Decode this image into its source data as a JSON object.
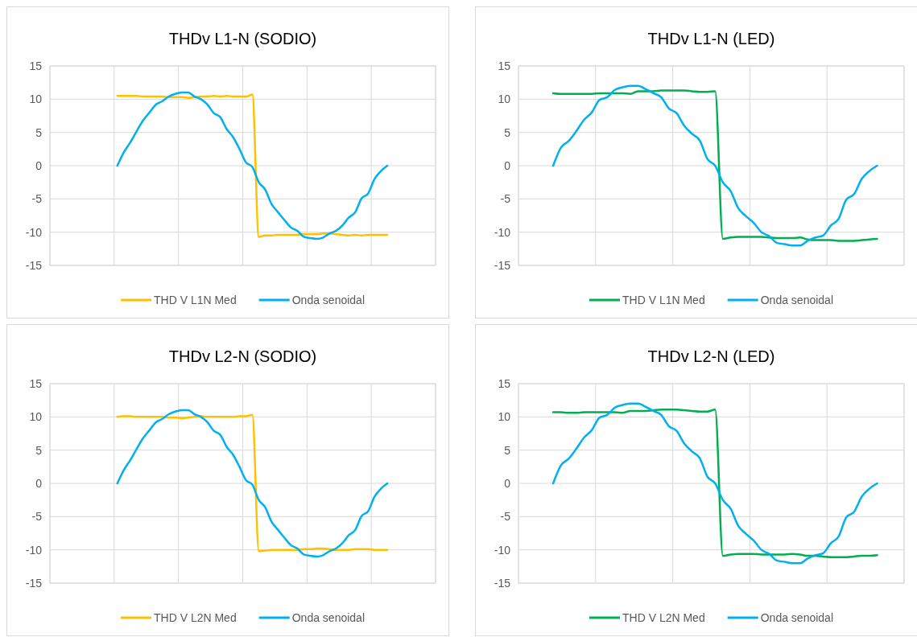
{
  "chart_data": [
    {
      "type": "line",
      "title": "THDv L1-N (SODIO)",
      "categories": [
        null,
        null,
        null,
        null,
        null,
        null,
        null,
        null,
        null,
        null,
        null,
        null,
        null,
        null,
        null,
        null,
        null,
        null,
        null,
        null,
        null,
        null,
        null,
        null,
        null,
        null,
        null,
        null,
        null,
        null,
        null,
        null,
        null,
        null,
        null,
        null,
        null,
        null,
        null,
        null,
        null,
        null,
        null,
        null,
        null,
        null,
        null,
        null,
        null,
        null,
        null,
        null,
        null,
        null,
        null,
        null,
        null,
        null,
        null,
        null
      ],
      "ylim": [
        -15,
        15
      ],
      "yticks": [
        -15,
        -10,
        -5,
        0,
        5,
        10,
        15
      ],
      "grid": true,
      "legend": "bottom",
      "tick_labels": "y",
      "marker": "none",
      "line_style": "solid",
      "series": [
        {
          "name": "THD V L1N Med",
          "color": "#ffc000",
          "values": [
            null,
            null,
            null,
            null,
            null,
            null,
            null,
            null,
            null,
            null,
            10.5,
            10.5,
            10.5,
            10.5,
            10.4,
            10.4,
            10.4,
            10.4,
            10.3,
            10.3,
            10.3,
            10.2,
            10.3,
            10.4,
            10.4,
            10.5,
            10.4,
            10.5,
            10.4,
            10.4,
            10.4,
            10.7,
            -10.7,
            -10.5,
            -10.5,
            -10.4,
            -10.4,
            -10.4,
            -10.4,
            -10.3,
            -10.3,
            -10.3,
            -10.2,
            -10.2,
            -10.3,
            -10.4,
            -10.5,
            -10.4,
            -10.5,
            -10.4,
            -10.4,
            -10.4,
            -10.4,
            null,
            null,
            null,
            null,
            null,
            null,
            null
          ]
        },
        {
          "name": "Onda senoidal",
          "color": "#00b0f0",
          "values": [
            null,
            null,
            null,
            null,
            null,
            null,
            null,
            null,
            null,
            null,
            0,
            2.0,
            3.5,
            5.2,
            6.8,
            8.0,
            9.2,
            9.7,
            10.4,
            10.8,
            11.0,
            11.0,
            10.4,
            10.0,
            9.2,
            7.9,
            7.3,
            5.5,
            4.3,
            2.5,
            0.5,
            -0.2,
            -2.5,
            -3.6,
            -5.8,
            -7.0,
            -8.2,
            -9.3,
            -9.8,
            -10.7,
            -10.9,
            -11.0,
            -10.8,
            -10.2,
            -9.8,
            -9.0,
            -7.8,
            -7.0,
            -4.9,
            -4.2,
            -2.0,
            -0.8,
            0,
            null,
            null,
            null,
            null,
            null,
            null,
            null
          ]
        }
      ]
    },
    {
      "type": "line",
      "title": "THDv L1-N (LED)",
      "categories": [
        null,
        null,
        null,
        null,
        null,
        null,
        null,
        null,
        null,
        null,
        null,
        null,
        null,
        null,
        null,
        null,
        null,
        null,
        null,
        null,
        null,
        null,
        null,
        null,
        null,
        null,
        null,
        null,
        null,
        null,
        null,
        null,
        null,
        null,
        null,
        null,
        null,
        null,
        null,
        null,
        null,
        null,
        null,
        null,
        null,
        null,
        null,
        null,
        null,
        null
      ],
      "ylim": [
        -15,
        15
      ],
      "yticks": [
        -15,
        -10,
        -5,
        0,
        5,
        10,
        15
      ],
      "grid": true,
      "legend": "bottom",
      "tick_labels": "y",
      "marker": "none",
      "line_style": "solid",
      "series": [
        {
          "name": "THD V L1N Med",
          "color": "#00b050",
          "values": [
            null,
            null,
            null,
            null,
            10.9,
            10.8,
            10.8,
            10.8,
            10.8,
            10.8,
            10.9,
            10.9,
            10.9,
            10.9,
            10.8,
            11.2,
            11.2,
            11.2,
            11.3,
            11.3,
            11.3,
            11.3,
            11.2,
            11.1,
            11.1,
            11.2,
            -11.0,
            -10.8,
            -10.7,
            -10.7,
            -10.7,
            -10.7,
            -10.8,
            -10.9,
            -10.9,
            -10.9,
            -10.8,
            -11.1,
            -11.2,
            -11.2,
            -11.2,
            -11.3,
            -11.3,
            -11.3,
            -11.2,
            -11.1,
            -11.0,
            null,
            null,
            null
          ]
        },
        {
          "name": "Onda senoidal",
          "color": "#00b0f0",
          "values": [
            null,
            null,
            null,
            null,
            0,
            2.7,
            3.7,
            5.2,
            6.9,
            8.0,
            9.9,
            10.3,
            11.4,
            11.8,
            12.0,
            12.0,
            11.5,
            10.9,
            10.3,
            8.6,
            7.9,
            6.0,
            4.8,
            3.8,
            1.0,
            0,
            -2.5,
            -3.8,
            -6.4,
            -7.6,
            -8.6,
            -10.0,
            -10.6,
            -11.6,
            -11.8,
            -12.0,
            -12.0,
            -11.3,
            -10.8,
            -10.5,
            -9.0,
            -8.0,
            -5.1,
            -4.3,
            -2.0,
            -0.8,
            0,
            null,
            null,
            null
          ]
        }
      ]
    },
    {
      "type": "line",
      "title": "THDv L2-N (SODIO)",
      "categories": [
        null,
        null,
        null,
        null,
        null,
        null,
        null,
        null,
        null,
        null,
        null,
        null,
        null,
        null,
        null,
        null,
        null,
        null,
        null,
        null,
        null,
        null,
        null,
        null,
        null,
        null,
        null,
        null,
        null,
        null,
        null,
        null,
        null,
        null,
        null,
        null,
        null,
        null,
        null,
        null,
        null,
        null,
        null,
        null,
        null,
        null,
        null,
        null,
        null,
        null,
        null,
        null,
        null,
        null,
        null,
        null,
        null,
        null,
        null,
        null
      ],
      "ylim": [
        -15,
        15
      ],
      "yticks": [
        -15,
        -10,
        -5,
        0,
        5,
        10,
        15
      ],
      "grid": true,
      "legend": "bottom",
      "tick_labels": "y",
      "marker": "none",
      "line_style": "solid",
      "series": [
        {
          "name": "THD V L2N Med",
          "color": "#ffc000",
          "values": [
            null,
            null,
            null,
            null,
            null,
            null,
            null,
            null,
            null,
            null,
            10.0,
            10.1,
            10.1,
            10.0,
            10.0,
            10.0,
            10.0,
            10.0,
            9.9,
            9.9,
            9.8,
            9.9,
            10.0,
            10.1,
            10.0,
            10.0,
            10.0,
            10.0,
            10.0,
            10.1,
            10.1,
            10.3,
            -10.2,
            -10.1,
            -10.0,
            -10.0,
            -10.0,
            -10.0,
            -10.0,
            -9.9,
            -9.9,
            -9.8,
            -9.8,
            -9.9,
            -10.0,
            -10.0,
            -10.0,
            -9.9,
            -9.9,
            -9.9,
            -10.0,
            -10.0,
            -10.0,
            null,
            null,
            null,
            null,
            null,
            null,
            null
          ]
        },
        {
          "name": "Onda senoidal",
          "color": "#00b0f0",
          "values": [
            null,
            null,
            null,
            null,
            null,
            null,
            null,
            null,
            null,
            null,
            0,
            2.0,
            3.5,
            5.2,
            6.8,
            8.0,
            9.2,
            9.7,
            10.4,
            10.8,
            11.0,
            11.0,
            10.4,
            10.0,
            9.2,
            7.9,
            7.3,
            5.5,
            4.3,
            2.5,
            0.5,
            -0.2,
            -2.5,
            -3.6,
            -5.8,
            -7.0,
            -8.2,
            -9.3,
            -9.8,
            -10.7,
            -10.9,
            -11.0,
            -10.8,
            -10.2,
            -9.8,
            -9.0,
            -7.8,
            -7.0,
            -4.9,
            -4.2,
            -2.0,
            -0.8,
            0,
            null,
            null,
            null,
            null,
            null,
            null,
            null
          ]
        }
      ]
    },
    {
      "type": "line",
      "title": "THDv L2-N (LED)",
      "categories": [
        null,
        null,
        null,
        null,
        null,
        null,
        null,
        null,
        null,
        null,
        null,
        null,
        null,
        null,
        null,
        null,
        null,
        null,
        null,
        null,
        null,
        null,
        null,
        null,
        null,
        null,
        null,
        null,
        null,
        null,
        null,
        null,
        null,
        null,
        null,
        null,
        null,
        null,
        null,
        null,
        null,
        null,
        null,
        null,
        null,
        null,
        null,
        null,
        null,
        null
      ],
      "ylim": [
        -15,
        15
      ],
      "yticks": [
        -15,
        -10,
        -5,
        0,
        5,
        10,
        15
      ],
      "grid": true,
      "legend": "bottom",
      "tick_labels": "y",
      "marker": "none",
      "line_style": "solid",
      "series": [
        {
          "name": "THD V L2N Med",
          "color": "#00b050",
          "values": [
            null,
            null,
            null,
            null,
            10.7,
            10.7,
            10.6,
            10.6,
            10.7,
            10.7,
            10.7,
            10.7,
            10.7,
            10.6,
            10.9,
            10.9,
            10.9,
            11.0,
            11.1,
            11.1,
            11.1,
            11.0,
            10.9,
            10.8,
            10.8,
            11.1,
            -10.9,
            -10.7,
            -10.6,
            -10.6,
            -10.6,
            -10.7,
            -10.7,
            -10.7,
            -10.7,
            -10.6,
            -10.7,
            -10.9,
            -10.9,
            -11.0,
            -11.1,
            -11.1,
            -11.1,
            -11.0,
            -10.9,
            -10.9,
            -10.8,
            null,
            null,
            null
          ]
        },
        {
          "name": "Onda senoidal",
          "color": "#00b0f0",
          "values": [
            null,
            null,
            null,
            null,
            0,
            2.7,
            3.7,
            5.2,
            6.9,
            8.0,
            9.9,
            10.3,
            11.4,
            11.8,
            12.0,
            12.0,
            11.5,
            10.9,
            10.3,
            8.6,
            7.9,
            6.0,
            4.8,
            3.8,
            1.0,
            0,
            -2.5,
            -3.8,
            -6.4,
            -7.6,
            -8.6,
            -10.0,
            -10.6,
            -11.6,
            -11.8,
            -12.0,
            -12.0,
            -11.3,
            -10.8,
            -10.5,
            -9.0,
            -8.0,
            -5.1,
            -4.3,
            -2.0,
            -0.8,
            0,
            null,
            null,
            null
          ]
        }
      ]
    }
  ]
}
